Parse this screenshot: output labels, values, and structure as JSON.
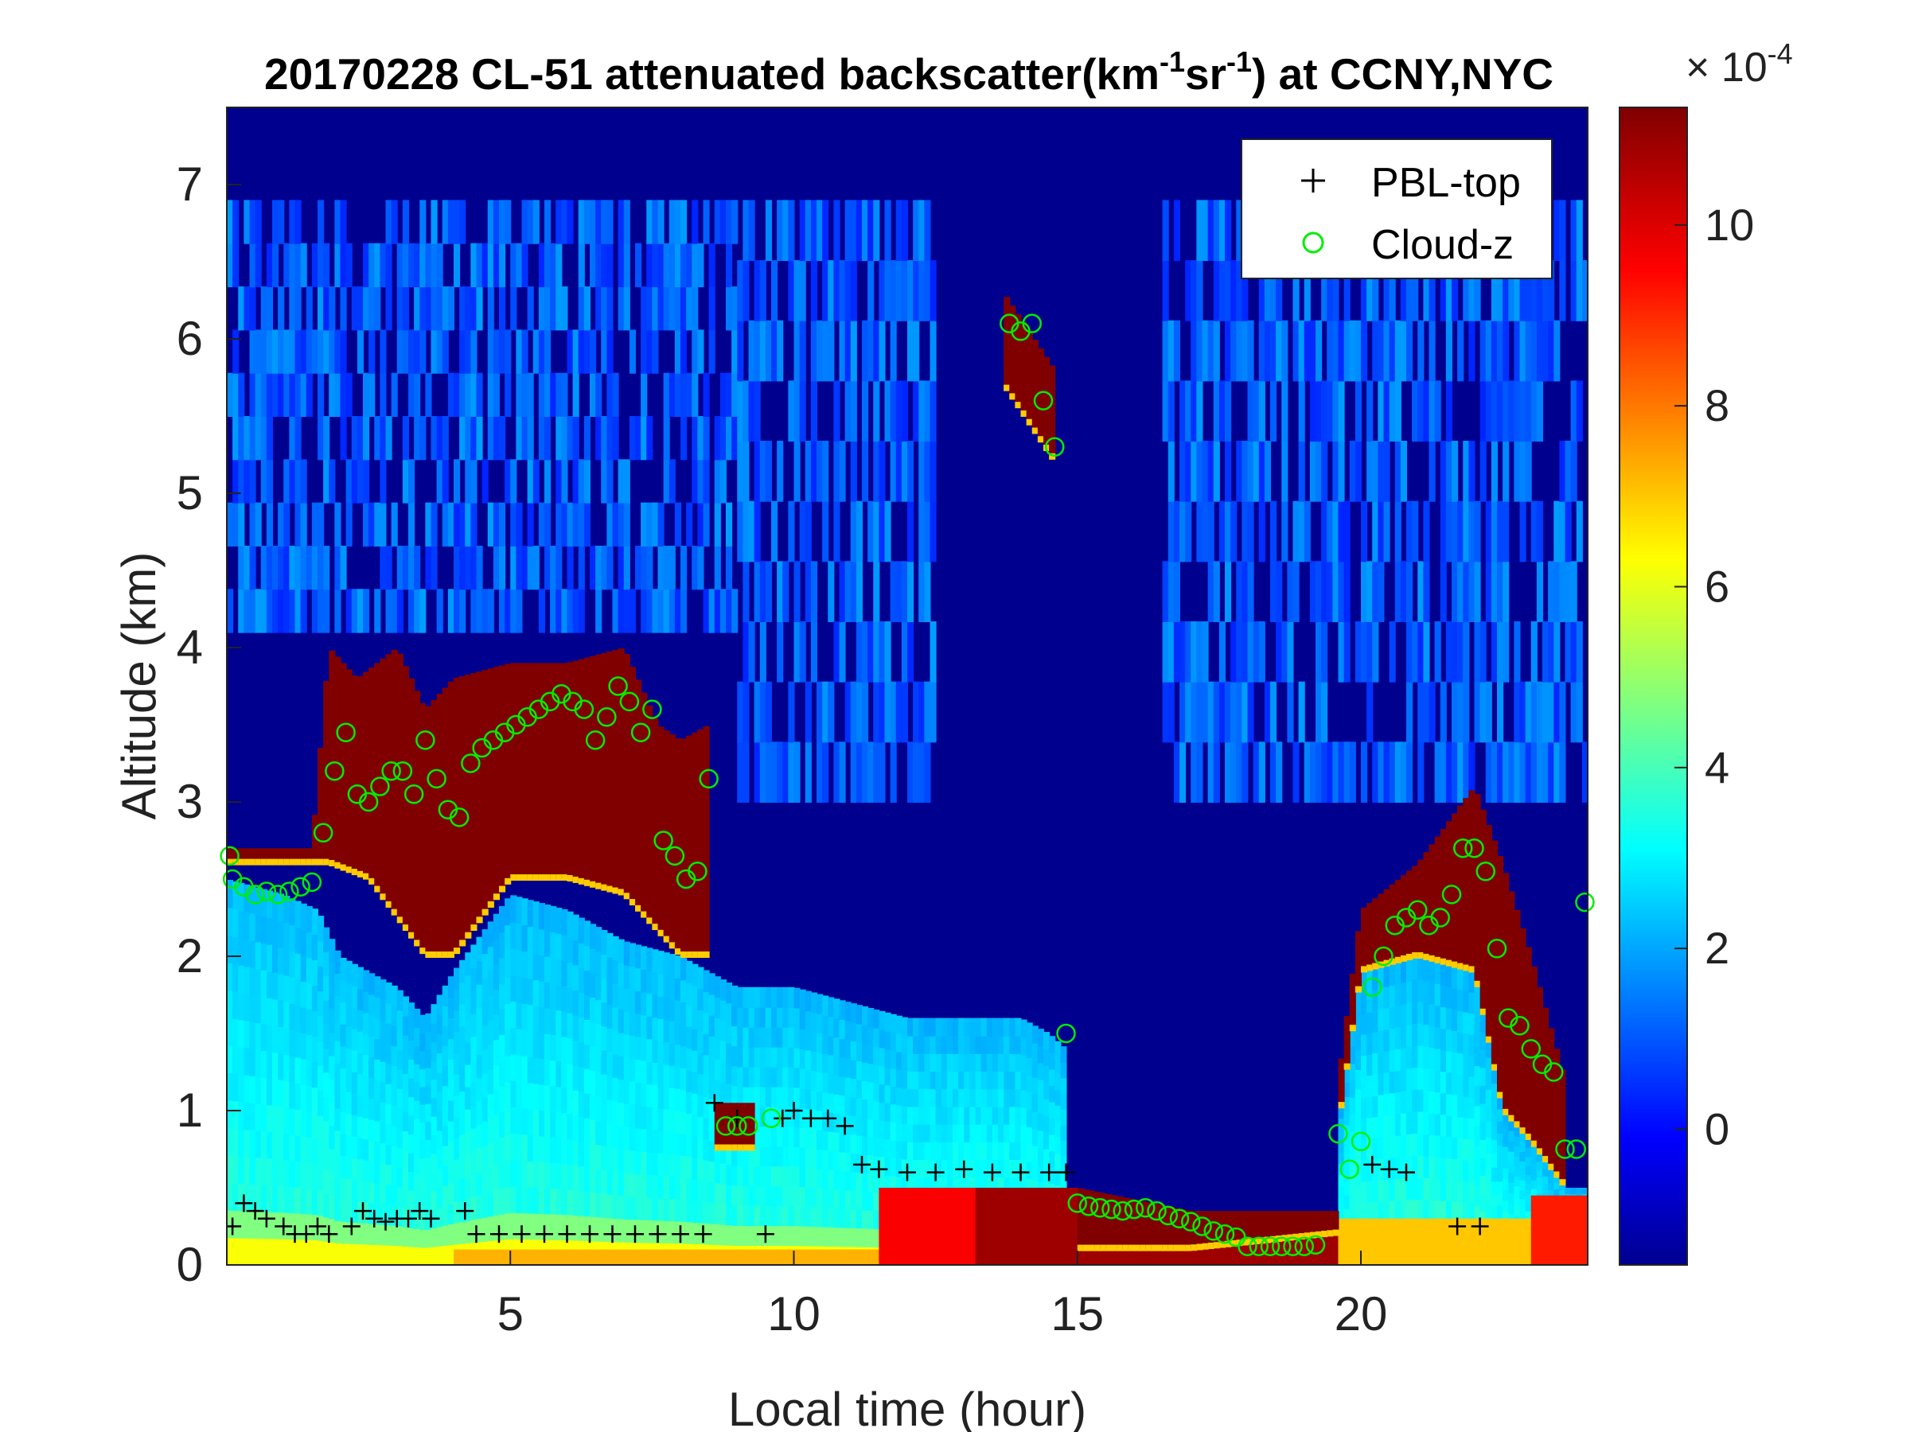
{
  "chart_data": {
    "type": "heatmap",
    "title": {
      "prefix": "20170228  CL-51 attenuated backscatter(km",
      "sup1": "-1",
      "mid": "sr",
      "sup2": "-1",
      "suffix": ") at CCNY,NYC"
    },
    "xlabel": "Local time (hour)",
    "ylabel": "Altitude (km)",
    "xlim": [
      0,
      24
    ],
    "ylim": [
      0,
      7.5
    ],
    "xticks": [
      5,
      10,
      15,
      20
    ],
    "yticks": [
      0,
      1,
      2,
      3,
      4,
      5,
      6,
      7
    ],
    "colorbar": {
      "range": [
        -1.5,
        11.3
      ],
      "ticks": [
        0,
        2,
        4,
        6,
        8,
        10
      ],
      "multiplier": {
        "base": "× 10",
        "exp": "-4"
      },
      "colormap": "jet"
    },
    "legend": {
      "position": "top-right",
      "entries": [
        {
          "label": "PBL-top",
          "marker": "+",
          "color": "#000000"
        },
        {
          "label": "Cloud-z",
          "marker": "o",
          "color": "#00ee00"
        }
      ]
    },
    "layers": {
      "aerosol_top_km": [
        [
          0,
          2.5
        ],
        [
          1,
          2.4
        ],
        [
          1.6,
          2.3
        ],
        [
          2,
          2.0
        ],
        [
          3,
          1.8
        ],
        [
          3.5,
          1.6
        ],
        [
          4,
          1.9
        ],
        [
          5,
          2.4
        ],
        [
          6,
          2.3
        ],
        [
          7,
          2.1
        ],
        [
          8,
          2.0
        ],
        [
          8.5,
          1.9
        ],
        [
          9,
          1.8
        ],
        [
          10,
          1.8
        ],
        [
          11,
          1.7
        ],
        [
          12,
          1.6
        ],
        [
          13,
          1.6
        ],
        [
          14,
          1.6
        ],
        [
          14.5,
          1.5
        ],
        [
          14.8,
          1.4
        ]
      ],
      "cloud_base_km": [
        [
          0,
          2.6
        ],
        [
          1.5,
          2.6
        ],
        [
          1.8,
          2.6
        ],
        [
          2.5,
          2.5
        ],
        [
          3.5,
          2.0
        ],
        [
          4,
          2.0
        ],
        [
          5,
          2.5
        ],
        [
          6,
          2.5
        ],
        [
          7,
          2.4
        ],
        [
          8,
          2.0
        ],
        [
          8.5,
          2.0
        ]
      ],
      "cloud_top_km": [
        [
          0,
          2.7
        ],
        [
          1.5,
          2.7
        ],
        [
          1.8,
          4.0
        ],
        [
          2.3,
          3.8
        ],
        [
          3,
          4.0
        ],
        [
          3.5,
          3.6
        ],
        [
          4,
          3.8
        ],
        [
          5,
          3.9
        ],
        [
          6,
          3.9
        ],
        [
          7,
          4.0
        ],
        [
          7.6,
          3.5
        ],
        [
          8,
          3.4
        ],
        [
          8.5,
          3.5
        ]
      ],
      "evening_cloud": {
        "x": [
          19.6,
          23.6
        ],
        "base": [
          [
            19.6,
            0.9
          ],
          [
            20,
            1.9
          ],
          [
            21,
            2.0
          ],
          [
            22,
            1.9
          ],
          [
            22.5,
            1.0
          ],
          [
            23,
            0.8
          ],
          [
            23.6,
            0.5
          ]
        ],
        "top": [
          [
            19.6,
            1.2
          ],
          [
            20,
            2.3
          ],
          [
            21,
            2.6
          ],
          [
            22,
            3.1
          ],
          [
            22.5,
            2.6
          ],
          [
            23,
            2.0
          ],
          [
            23.6,
            1.2
          ]
        ]
      }
    },
    "series": [
      {
        "name": "PBL-top",
        "x": [
          0.1,
          0.3,
          0.5,
          0.7,
          1.0,
          1.2,
          1.4,
          1.6,
          1.8,
          2.2,
          2.4,
          2.6,
          2.8,
          3.0,
          3.2,
          3.4,
          3.6,
          4.2,
          4.4,
          4.8,
          5.2,
          5.6,
          6.0,
          6.4,
          6.8,
          7.2,
          7.6,
          8.0,
          8.4,
          8.6,
          9.0,
          9.5,
          9.8,
          10.0,
          10.3,
          10.6,
          10.9,
          11.2,
          11.5,
          12.0,
          12.5,
          13.0,
          13.5,
          14.0,
          14.5,
          14.8,
          20.2,
          20.5,
          20.8,
          21.7,
          22.1
        ],
        "y": [
          0.25,
          0.4,
          0.35,
          0.3,
          0.25,
          0.2,
          0.2,
          0.25,
          0.2,
          0.25,
          0.35,
          0.3,
          0.28,
          0.3,
          0.3,
          0.35,
          0.3,
          0.35,
          0.2,
          0.2,
          0.2,
          0.2,
          0.2,
          0.2,
          0.2,
          0.2,
          0.2,
          0.2,
          0.2,
          1.05,
          0.95,
          0.2,
          0.95,
          1.0,
          0.95,
          0.95,
          0.9,
          0.65,
          0.62,
          0.6,
          0.6,
          0.62,
          0.6,
          0.6,
          0.6,
          0.6,
          0.65,
          0.62,
          0.6,
          0.25,
          0.25
        ]
      },
      {
        "name": "Cloud-z",
        "x": [
          0.1,
          0.3,
          0.5,
          0.7,
          0.9,
          1.1,
          1.3,
          1.5,
          1.7,
          1.9,
          2.1,
          2.3,
          2.5,
          2.7,
          2.9,
          3.1,
          3.3,
          3.5,
          3.7,
          3.9,
          4.1,
          4.3,
          4.5,
          4.7,
          4.9,
          5.1,
          5.3,
          5.5,
          5.7,
          5.9,
          6.1,
          6.3,
          6.5,
          6.7,
          6.9,
          7.1,
          7.3,
          7.5,
          7.7,
          7.9,
          8.1,
          8.3,
          8.5,
          8.8,
          9.0,
          9.2,
          9.6,
          13.8,
          14.0,
          14.2,
          14.4,
          14.6,
          14.8,
          15.0,
          15.2,
          15.4,
          15.6,
          15.8,
          16.0,
          16.2,
          16.4,
          16.6,
          16.8,
          17.0,
          17.2,
          17.4,
          17.6,
          17.8,
          18.0,
          18.2,
          18.4,
          18.6,
          18.8,
          19.0,
          19.2,
          19.6,
          19.8,
          20.0,
          20.2,
          20.4,
          20.6,
          20.8,
          21.0,
          21.2,
          21.4,
          21.6,
          21.8,
          22.0,
          22.2,
          22.4,
          22.6,
          22.8,
          23.0,
          23.2,
          23.4,
          23.6,
          23.8,
          0.05,
          23.95
        ],
        "y": [
          2.5,
          2.45,
          2.4,
          2.42,
          2.4,
          2.42,
          2.45,
          2.48,
          2.8,
          3.2,
          3.45,
          3.05,
          3.0,
          3.1,
          3.2,
          3.2,
          3.05,
          3.4,
          3.15,
          2.95,
          2.9,
          3.25,
          3.35,
          3.4,
          3.45,
          3.5,
          3.55,
          3.6,
          3.65,
          3.7,
          3.65,
          3.6,
          3.4,
          3.55,
          3.75,
          3.65,
          3.45,
          3.6,
          2.75,
          2.65,
          2.5,
          2.55,
          3.15,
          0.9,
          0.9,
          0.9,
          0.95,
          6.1,
          6.05,
          6.1,
          5.6,
          5.3,
          1.5,
          0.4,
          0.38,
          0.37,
          0.36,
          0.35,
          0.36,
          0.37,
          0.35,
          0.32,
          0.3,
          0.28,
          0.25,
          0.22,
          0.2,
          0.18,
          0.12,
          0.12,
          0.12,
          0.12,
          0.12,
          0.12,
          0.13,
          0.85,
          0.62,
          0.8,
          1.8,
          2.0,
          2.2,
          2.25,
          2.3,
          2.2,
          2.25,
          2.4,
          2.7,
          2.7,
          2.55,
          2.05,
          1.6,
          1.55,
          1.4,
          1.3,
          1.25,
          0.75,
          0.75,
          2.65,
          2.35
        ]
      }
    ]
  }
}
